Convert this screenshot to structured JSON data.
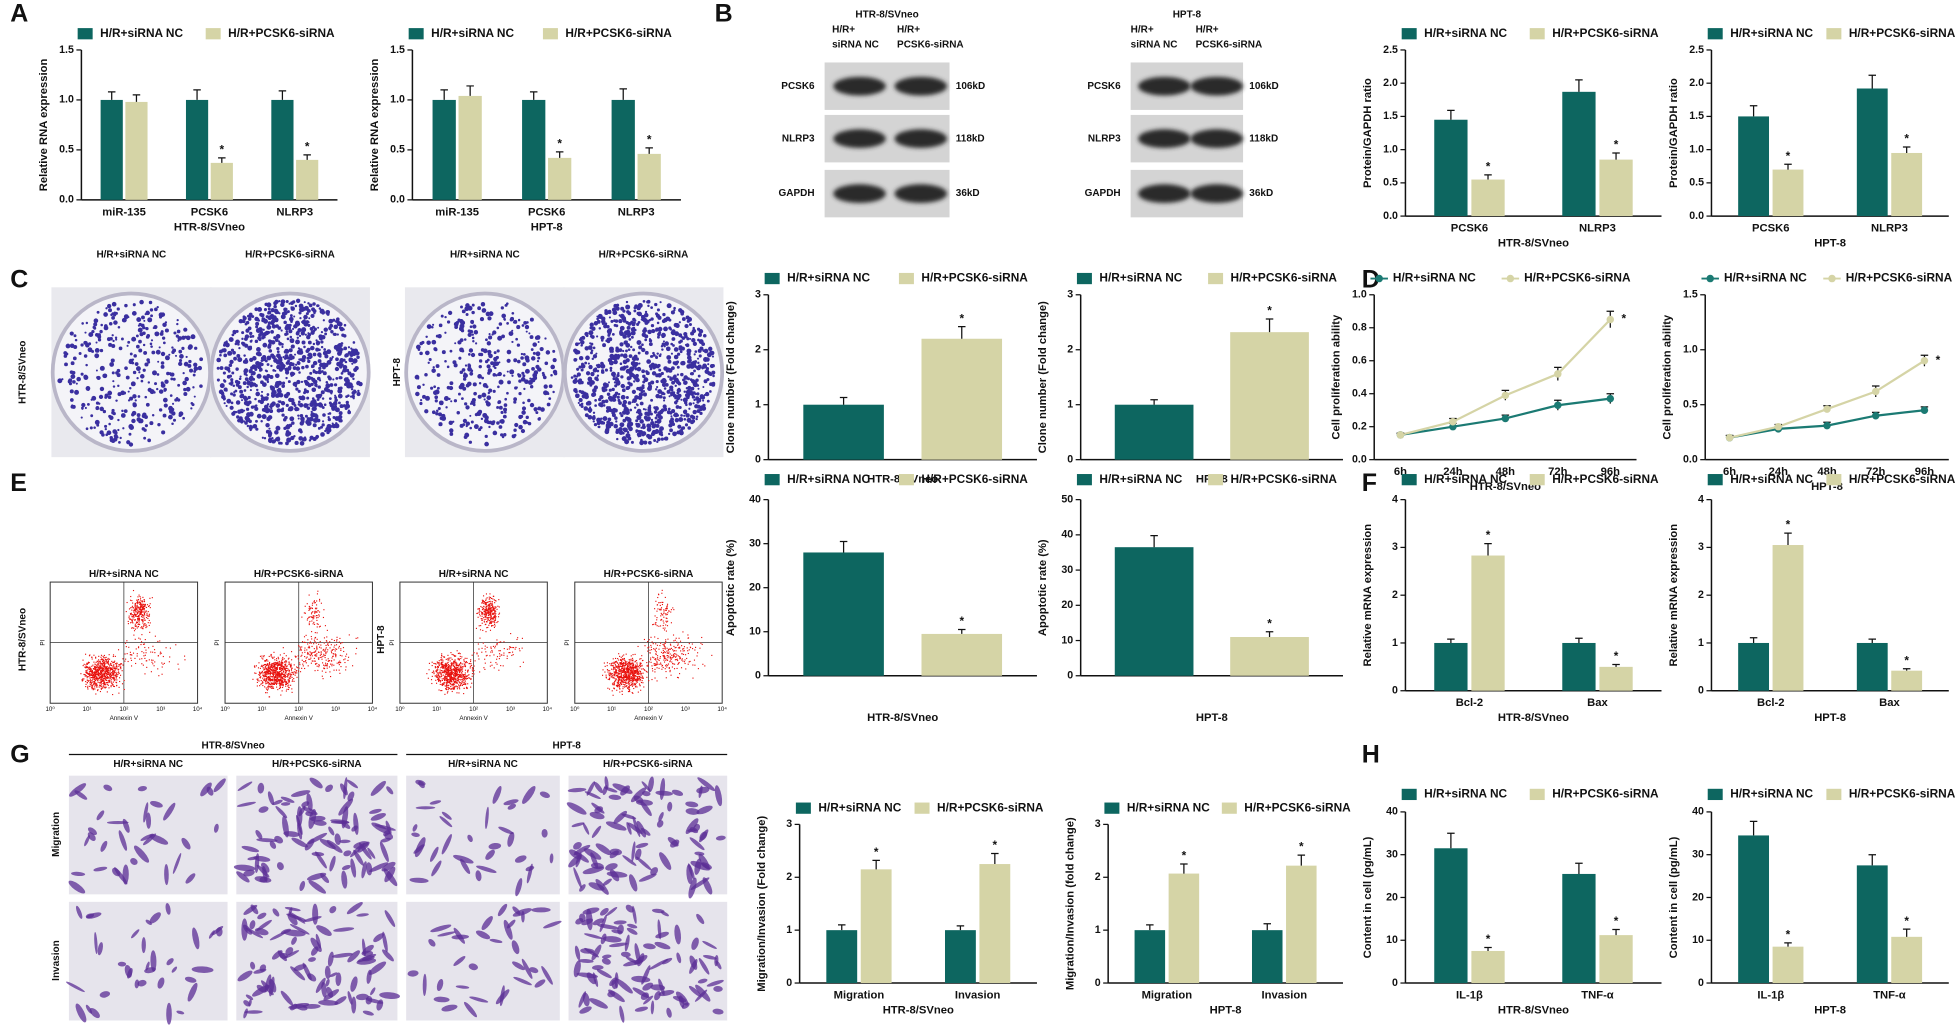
{
  "panel_letters": [
    "A",
    "B",
    "C",
    "D",
    "E",
    "F",
    "G",
    "H"
  ],
  "blot_panel": {
    "blots": [
      {
        "title": "HTR-8/SVneo",
        "lanes": [
          [
            "H/R+",
            "siRNA NC"
          ],
          [
            "H/R+",
            "PCSK6-siRNA"
          ]
        ],
        "proteins": [
          "PCSK6",
          "NLRP3",
          "GAPDH"
        ],
        "sizes": [
          "106kD",
          "118kD",
          "36kD"
        ]
      },
      {
        "title": "HPT-8",
        "lanes": [
          [
            "H/R+",
            "siRNA NC"
          ],
          [
            "H/R+",
            "PCSK6-siRNA"
          ]
        ],
        "proteins": [
          "PCSK6",
          "NLRP3",
          "GAPDH"
        ],
        "sizes": [
          "106kD",
          "118kD",
          "36kD"
        ]
      }
    ]
  },
  "colony_panel": {
    "labels": [
      "H/R+siRNA NC",
      "H/R+PCSK6-siRNA",
      "H/R+siRNA NC",
      "H/R+PCSK6-siRNA"
    ],
    "row_labels": [
      "HTR-8/SVneo",
      "HPT-8"
    ]
  },
  "flow_panel": {
    "labels": [
      "H/R+siRNA NC",
      "H/R+PCSK6-siRNA",
      "H/R+siRNA NC",
      "H/R+PCSK6-siRNA"
    ],
    "x_label": "Annexin V",
    "y_label": "PI",
    "row_labels": [
      "HTR-8/SVneo",
      "HPT-8"
    ],
    "ticks": [
      "10⁰",
      "10¹",
      "10²",
      "10³",
      "10⁴"
    ]
  },
  "micro_panel": {
    "groups": [
      {
        "title": "HTR-8/SVneo",
        "columns": [
          "H/R+siRNA NC",
          "H/R+PCSK6-siRNA"
        ]
      },
      {
        "title": "HPT-8",
        "columns": [
          "H/R+siRNA NC",
          "H/R+PCSK6-siRNA"
        ]
      }
    ],
    "row_labels": [
      "Migration",
      "Invasion"
    ]
  },
  "chart_data": [
    {
      "type": "bar",
      "ylabel": "Relative RNA expression",
      "xlabel": "HTR-8/SVneo",
      "categories": [
        "miR-135",
        "PCSK6",
        "NLRP3"
      ],
      "ylim": [
        0,
        1.5
      ],
      "yticks": [
        {
          "value": 0,
          "label": "0.0"
        },
        0.5,
        {
          "value": 1,
          "label": "1.0"
        },
        1.5
      ],
      "series": [
        {
          "name": "H/R+siRNA NC",
          "color": "#0d6660",
          "values": [
            1,
            1,
            1
          ],
          "errors": [
            0.08,
            0.1,
            0.09
          ],
          "labels": [
            null,
            null,
            null
          ]
        },
        {
          "name": "H/R+PCSK6-siRNA",
          "color": "#d5d4a6",
          "values": [
            0.98,
            0.37,
            0.4
          ],
          "errors": [
            0.07,
            0.05,
            0.05
          ],
          "labels": [
            null,
            "*",
            "*"
          ]
        }
      ]
    },
    {
      "type": "bar",
      "ylabel": "Relative RNA expression",
      "xlabel": "HPT-8",
      "categories": [
        "miR-135",
        "PCSK6",
        "NLRP3"
      ],
      "ylim": [
        0,
        1.5
      ],
      "yticks": [
        {
          "value": 0,
          "label": "0.0"
        },
        0.5,
        {
          "value": 1,
          "label": "1.0"
        },
        1.5
      ],
      "series": [
        {
          "name": "H/R+siRNA NC",
          "color": "#0d6660",
          "values": [
            1,
            1,
            1
          ],
          "errors": [
            0.1,
            0.08,
            0.11
          ],
          "labels": [
            null,
            null,
            null
          ]
        },
        {
          "name": "H/R+PCSK6-siRNA",
          "color": "#d5d4a6",
          "values": [
            1.04,
            0.42,
            0.46
          ],
          "errors": [
            0.1,
            0.06,
            0.06
          ],
          "labels": [
            null,
            "*",
            "*"
          ]
        }
      ]
    },
    {
      "type": "bar",
      "ylabel": "Protein/GAPDH ratio",
      "xlabel": "HTR-8/SVneo",
      "categories": [
        "PCSK6",
        "NLRP3"
      ],
      "ylim": [
        0,
        2.5
      ],
      "yticks": [
        {
          "value": 0,
          "label": "0.0"
        },
        0.5,
        {
          "value": 1,
          "label": "1.0"
        },
        1.5,
        {
          "value": 2,
          "label": "2.0"
        },
        2.5
      ],
      "series": [
        {
          "name": "H/R+siRNA NC",
          "color": "#0d6660",
          "values": [
            1.45,
            1.87
          ],
          "errors": [
            0.14,
            0.18
          ],
          "labels": [
            null,
            null
          ]
        },
        {
          "name": "H/R+PCSK6-siRNA",
          "color": "#d5d4a6",
          "values": [
            0.55,
            0.85
          ],
          "errors": [
            0.07,
            0.1
          ],
          "labels": [
            "*",
            "*"
          ]
        }
      ]
    },
    {
      "type": "bar",
      "ylabel": "Protein/GAPDH ratio",
      "xlabel": "HPT-8",
      "categories": [
        "PCSK6",
        "NLRP3"
      ],
      "ylim": [
        0,
        2.5
      ],
      "yticks": [
        {
          "value": 0,
          "label": "0.0"
        },
        0.5,
        {
          "value": 1,
          "label": "1.0"
        },
        1.5,
        {
          "value": 2,
          "label": "2.0"
        },
        2.5
      ],
      "series": [
        {
          "name": "H/R+siRNA NC",
          "color": "#0d6660",
          "values": [
            1.5,
            1.92
          ],
          "errors": [
            0.16,
            0.2
          ],
          "labels": [
            null,
            null
          ]
        },
        {
          "name": "H/R+PCSK6-siRNA",
          "color": "#d5d4a6",
          "values": [
            0.7,
            0.95
          ],
          "errors": [
            0.08,
            0.09
          ],
          "labels": [
            "*",
            "*"
          ]
        }
      ]
    },
    {
      "type": "bar",
      "ylabel": "Clone number (Fold change)",
      "xlabel": "HTR-8/SVneo",
      "categories": [
        null
      ],
      "ylim": [
        0,
        3
      ],
      "yticks": [
        0,
        1,
        2,
        3
      ],
      "series": [
        {
          "name": "H/R+siRNA NC",
          "color": "#0d6660",
          "values": [
            1
          ],
          "errors": [
            0.13
          ],
          "labels": [
            null
          ]
        },
        {
          "name": "H/R+PCSK6-siRNA",
          "color": "#d5d4a6",
          "values": [
            2.2
          ],
          "errors": [
            0.22
          ],
          "labels": [
            "*"
          ]
        }
      ]
    },
    {
      "type": "bar",
      "ylabel": "Clone number (Fold change)",
      "xlabel": "HPT-8",
      "categories": [
        null
      ],
      "ylim": [
        0,
        3
      ],
      "yticks": [
        0,
        1,
        2,
        3
      ],
      "series": [
        {
          "name": "H/R+siRNA NC",
          "color": "#0d6660",
          "values": [
            1
          ],
          "errors": [
            0.09
          ],
          "labels": [
            null
          ]
        },
        {
          "name": "H/R+PCSK6-siRNA",
          "color": "#d5d4a6",
          "values": [
            2.32
          ],
          "errors": [
            0.24
          ],
          "labels": [
            "*"
          ]
        }
      ]
    },
    {
      "type": "line",
      "ylabel": "Cell proliferation ability",
      "xlabel": "HTR-8/SVneo",
      "categories": [
        "6h",
        "24h",
        "48h",
        "72h",
        "96h"
      ],
      "ylim": [
        0,
        1.0
      ],
      "yticks": [
        {
          "value": 0,
          "label": "0.0"
        },
        0.2,
        0.4,
        0.6,
        0.8,
        {
          "value": 1,
          "label": "1.0"
        }
      ],
      "series": [
        {
          "name": "H/R+siRNA NC",
          "color": "#1b7a73",
          "values": [
            0.15,
            0.2,
            0.25,
            0.33,
            0.37
          ],
          "errors": [
            0.01,
            0.02,
            0.02,
            0.03,
            0.03
          ],
          "labels": [
            null,
            null,
            null,
            null,
            null
          ]
        },
        {
          "name": "H/R+PCSK6-siRNA",
          "color": "#d5d4a6",
          "values": [
            0.15,
            0.23,
            0.39,
            0.52,
            0.85
          ],
          "errors": [
            0.01,
            0.02,
            0.03,
            0.04,
            0.05
          ],
          "labels": [
            null,
            null,
            null,
            null,
            "*"
          ]
        }
      ]
    },
    {
      "type": "line",
      "ylabel": "Cell proliferation ability",
      "xlabel": "HPT-8",
      "categories": [
        "6h",
        "24h",
        "48h",
        "72h",
        "96h"
      ],
      "ylim": [
        0,
        1.5
      ],
      "yticks": [
        {
          "value": 0,
          "label": "0.0"
        },
        0.5,
        {
          "value": 1,
          "label": "1.0"
        },
        1.5
      ],
      "series": [
        {
          "name": "H/R+siRNA NC",
          "color": "#1b7a73",
          "values": [
            0.2,
            0.28,
            0.31,
            0.4,
            0.45
          ],
          "errors": [
            0.02,
            0.02,
            0.03,
            0.03,
            0.03
          ],
          "labels": [
            null,
            null,
            null,
            null,
            null
          ]
        },
        {
          "name": "H/R+PCSK6-siRNA",
          "color": "#d5d4a6",
          "values": [
            0.2,
            0.3,
            0.46,
            0.62,
            0.9
          ],
          "errors": [
            0.02,
            0.02,
            0.03,
            0.05,
            0.05
          ],
          "labels": [
            null,
            null,
            null,
            null,
            "*"
          ]
        }
      ]
    },
    {
      "type": "bar",
      "ylabel": "Apoptotic rate (%)",
      "xlabel": "HTR-8/SVneo",
      "categories": [
        null
      ],
      "ylim": [
        0,
        40
      ],
      "yticks": [
        0,
        10,
        20,
        30,
        40
      ],
      "series": [
        {
          "name": "H/R+siRNA NC",
          "color": "#0d6660",
          "values": [
            28
          ],
          "errors": [
            2.5
          ],
          "labels": [
            null
          ]
        },
        {
          "name": "H/R+PCSK6-siRNA",
          "color": "#d5d4a6",
          "values": [
            9.5
          ],
          "errors": [
            1
          ],
          "labels": [
            "*"
          ]
        }
      ]
    },
    {
      "type": "bar",
      "ylabel": "Apoptotic rate (%)",
      "xlabel": "HPT-8",
      "categories": [
        null
      ],
      "ylim": [
        0,
        50
      ],
      "yticks": [
        0,
        10,
        20,
        30,
        40,
        50
      ],
      "series": [
        {
          "name": "H/R+siRNA NC",
          "color": "#0d6660",
          "values": [
            36.5
          ],
          "errors": [
            3.3
          ],
          "labels": [
            null
          ]
        },
        {
          "name": "H/R+PCSK6-siRNA",
          "color": "#d5d4a6",
          "values": [
            11
          ],
          "errors": [
            1.5
          ],
          "labels": [
            "*"
          ]
        }
      ]
    },
    {
      "type": "bar",
      "ylabel": "Relative mRNA expression",
      "xlabel": "HTR-8/SVneo",
      "categories": [
        "Bcl-2",
        "Bax"
      ],
      "ylim": [
        0,
        4
      ],
      "yticks": [
        0,
        1,
        2,
        3,
        4
      ],
      "series": [
        {
          "name": "H/R+siRNA NC",
          "color": "#0d6660",
          "values": [
            1,
            1
          ],
          "errors": [
            0.08,
            0.1
          ],
          "labels": [
            null,
            null
          ]
        },
        {
          "name": "H/R+PCSK6-siRNA",
          "color": "#d5d4a6",
          "values": [
            2.83,
            0.5
          ],
          "errors": [
            0.25,
            0.05
          ],
          "labels": [
            "*",
            "*"
          ]
        }
      ]
    },
    {
      "type": "bar",
      "ylabel": "Relative mRNA expression",
      "xlabel": "HPT-8",
      "categories": [
        "Bcl-2",
        "Bax"
      ],
      "ylim": [
        0,
        4
      ],
      "yticks": [
        0,
        1,
        2,
        3,
        4
      ],
      "series": [
        {
          "name": "H/R+siRNA NC",
          "color": "#0d6660",
          "values": [
            1,
            1
          ],
          "errors": [
            0.11,
            0.08
          ],
          "labels": [
            null,
            null
          ]
        },
        {
          "name": "H/R+PCSK6-siRNA",
          "color": "#d5d4a6",
          "values": [
            3.05,
            0.42
          ],
          "errors": [
            0.25,
            0.04
          ],
          "labels": [
            "*",
            "*"
          ]
        }
      ]
    },
    {
      "type": "bar",
      "ylabel": "Migration/Invasion (Fold change)",
      "xlabel": "HTR-8/SVneo",
      "categories": [
        "Migration",
        "Invasion"
      ],
      "ylim": [
        0,
        3
      ],
      "yticks": [
        0,
        1,
        2,
        3
      ],
      "series": [
        {
          "name": "H/R+siRNA NC",
          "color": "#0d6660",
          "values": [
            1,
            1
          ],
          "errors": [
            0.1,
            0.08
          ],
          "labels": [
            null,
            null
          ]
        },
        {
          "name": "H/R+PCSK6-siRNA",
          "color": "#d5d4a6",
          "values": [
            2.15,
            2.25
          ],
          "errors": [
            0.17,
            0.2
          ],
          "labels": [
            "*",
            "*"
          ]
        }
      ]
    },
    {
      "type": "bar",
      "ylabel": "Migration/Invasion (fold change)",
      "xlabel": "HPT-8",
      "categories": [
        "Migration",
        "Invasion"
      ],
      "ylim": [
        0,
        3
      ],
      "yticks": [
        0,
        1,
        2,
        3
      ],
      "series": [
        {
          "name": "H/R+siRNA NC",
          "color": "#0d6660",
          "values": [
            1,
            1
          ],
          "errors": [
            0.1,
            0.12
          ],
          "labels": [
            null,
            null
          ]
        },
        {
          "name": "H/R+PCSK6-siRNA",
          "color": "#d5d4a6",
          "values": [
            2.07,
            2.22
          ],
          "errors": [
            0.18,
            0.2
          ],
          "labels": [
            "*",
            "*"
          ]
        }
      ]
    },
    {
      "type": "bar",
      "ylabel": "Content in cell (pg/mL)",
      "xlabel": "HTR-8/SVneo",
      "categories": [
        "IL-1β",
        "TNF-α"
      ],
      "ylim": [
        0,
        40
      ],
      "yticks": [
        0,
        10,
        20,
        30,
        40
      ],
      "series": [
        {
          "name": "H/R+siRNA NC",
          "color": "#0d6660",
          "values": [
            31.5,
            25.5
          ],
          "errors": [
            3.5,
            2.5
          ],
          "labels": [
            null,
            null
          ]
        },
        {
          "name": "H/R+PCSK6-siRNA",
          "color": "#d5d4a6",
          "values": [
            7.5,
            11.2
          ],
          "errors": [
            0.8,
            1.3
          ],
          "labels": [
            "*",
            "*"
          ]
        }
      ]
    },
    {
      "type": "bar",
      "ylabel": "Content in cell (pg/mL)",
      "xlabel": "HPT-8",
      "categories": [
        "IL-1β",
        "TNF-α"
      ],
      "ylim": [
        0,
        40
      ],
      "yticks": [
        0,
        10,
        20,
        30,
        40
      ],
      "series": [
        {
          "name": "H/R+siRNA NC",
          "color": "#0d6660",
          "values": [
            34.5,
            27.5
          ],
          "errors": [
            3.3,
            2.5
          ],
          "labels": [
            null,
            null
          ]
        },
        {
          "name": "H/R+PCSK6-siRNA",
          "color": "#d5d4a6",
          "values": [
            8.5,
            10.8
          ],
          "errors": [
            0.9,
            1.8
          ],
          "labels": [
            "*",
            "*"
          ]
        }
      ]
    }
  ]
}
